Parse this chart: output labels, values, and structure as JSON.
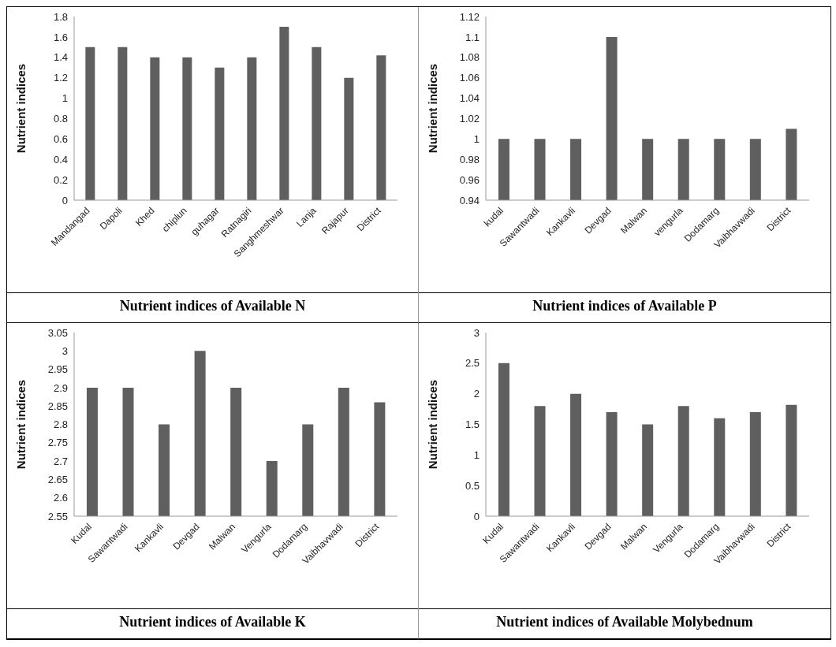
{
  "chart_data": [
    {
      "type": "bar",
      "title": "Nutrient indices of Available N",
      "ylabel": "Nutrient indices",
      "categories": [
        "Mandangad",
        "Dapoli",
        "Khed",
        "chiplun",
        "guhagar",
        "Ratnagiri",
        "Sanghmeshwar",
        "Lanja",
        "Rajapur",
        "District"
      ],
      "values": [
        1.5,
        1.5,
        1.4,
        1.4,
        1.3,
        1.4,
        1.7,
        1.5,
        1.2,
        1.42
      ],
      "color": "#5f5f5f",
      "ylim": [
        0,
        1.8
      ],
      "yticks": [
        0,
        0.2,
        0.4,
        0.6,
        0.8,
        1,
        1.2,
        1.4,
        1.6,
        1.8
      ],
      "grid": false,
      "legend": false
    },
    {
      "type": "bar",
      "title": "Nutrient indices of Available P",
      "ylabel": "Nutrient indices",
      "categories": [
        "kudal",
        "Sawantwadi",
        "Kankavli",
        "Devgad",
        "Malwan",
        "vengurla",
        "Dodamarg",
        "Vaibhavwadi",
        "District"
      ],
      "values": [
        1,
        1,
        1,
        1.1,
        1,
        1,
        1,
        1,
        1.01
      ],
      "color": "#5f5f5f",
      "ylim": [
        0.94,
        1.12
      ],
      "yticks": [
        0.94,
        0.96,
        0.98,
        1,
        1.02,
        1.04,
        1.06,
        1.08,
        1.1,
        1.12
      ],
      "grid": false,
      "legend": false
    },
    {
      "type": "bar",
      "title": "Nutrient indices of Available K",
      "ylabel": "Nutrient indices",
      "categories": [
        "Kudal",
        "Sawantwadi",
        "Kankavli",
        "Devgad",
        "Malwan",
        "Vengurla",
        "Dodamarg",
        "Vaibhavwadi",
        "District"
      ],
      "values": [
        2.9,
        2.9,
        2.8,
        3,
        2.9,
        2.7,
        2.8,
        2.9,
        2.86
      ],
      "color": "#5f5f5f",
      "ylim": [
        2.55,
        3.05
      ],
      "yticks": [
        2.55,
        2.6,
        2.65,
        2.7,
        2.75,
        2.8,
        2.85,
        2.9,
        2.95,
        3,
        3.05
      ],
      "grid": false,
      "legend": false
    },
    {
      "type": "bar",
      "title": "Nutrient indices of Available Molybednum",
      "ylabel": "Nutrient indices",
      "categories": [
        "Kudal",
        "Sawantwadi",
        "Kankavli",
        "Devgad",
        "Malwan",
        "Vengurla",
        "Dodamarg",
        "Vaibhavwadi",
        "District"
      ],
      "values": [
        2.5,
        1.8,
        2,
        1.7,
        1.5,
        1.8,
        1.6,
        1.7,
        1.82
      ],
      "color": "#5f5f5f",
      "ylim": [
        0,
        3
      ],
      "yticks": [
        0,
        0.5,
        1,
        1.5,
        2,
        2.5,
        3
      ],
      "grid": false,
      "legend": false
    }
  ]
}
